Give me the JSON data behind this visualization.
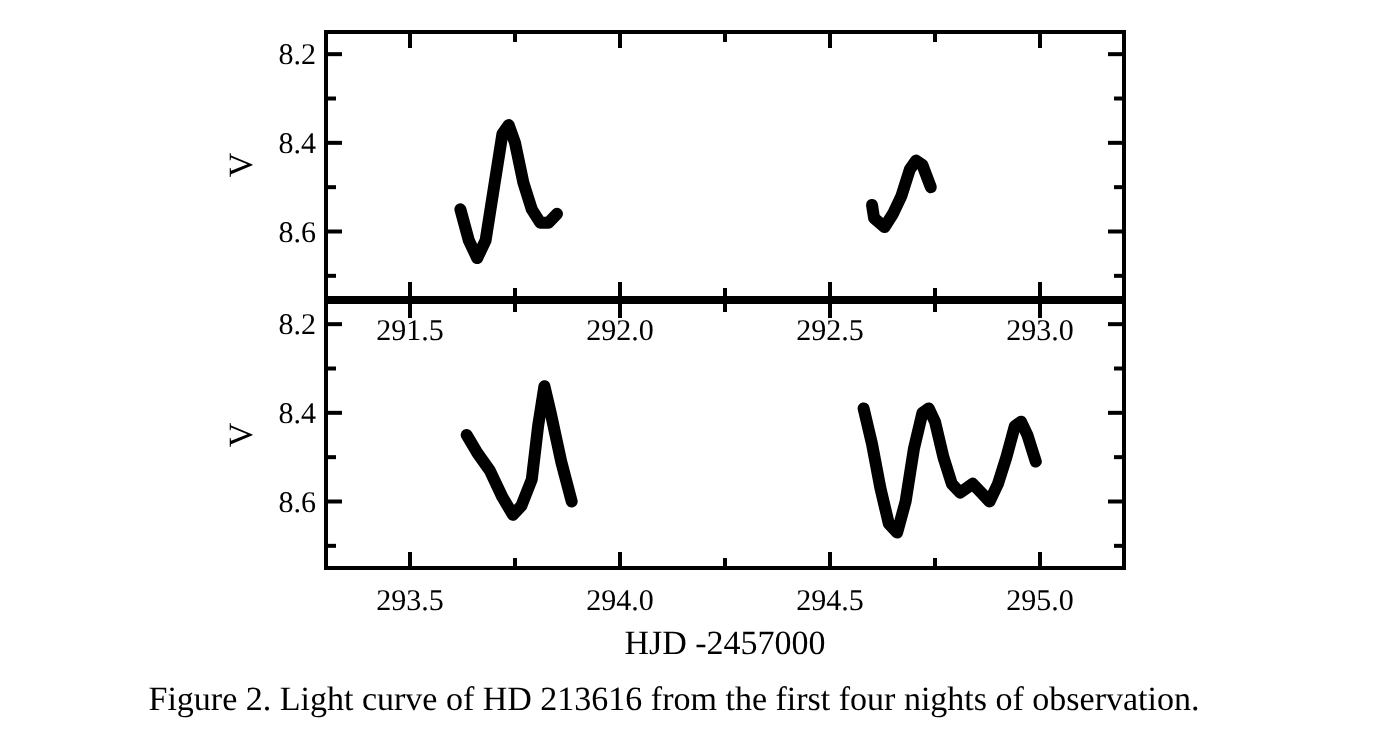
{
  "chart_data": [
    {
      "type": "line",
      "ylabel": "V",
      "xlim": [
        291.3,
        293.2
      ],
      "ylim": [
        8.75,
        8.15
      ],
      "xticks": [
        291.5,
        {
          "value": 291.75,
          "label": null
        },
        {
          "value": 292,
          "label": "292.0"
        },
        {
          "value": 292.25,
          "label": null
        },
        292.5,
        {
          "value": 292.75,
          "label": null
        },
        {
          "value": 293,
          "label": "293.0"
        }
      ],
      "yticks": [
        8.2,
        {
          "value": 8.3,
          "label": null
        },
        8.4,
        {
          "value": 8.5,
          "label": null
        },
        8.6,
        {
          "value": 8.7,
          "label": null
        }
      ],
      "series": [
        {
          "color": "#000000",
          "x": [
            291.62,
            291.64,
            291.66,
            291.68,
            291.7,
            291.72,
            291.735,
            291.75,
            291.77,
            291.79,
            291.81,
            291.83,
            291.85
          ],
          "values": [
            8.55,
            8.62,
            8.66,
            8.62,
            8.5,
            8.38,
            8.36,
            8.4,
            8.49,
            8.55,
            8.58,
            8.58,
            8.56
          ]
        },
        {
          "color": "#000000",
          "x": [
            292.6,
            292.605,
            292.63,
            292.65,
            292.67,
            292.69,
            292.705,
            292.72,
            292.74
          ],
          "values": [
            8.54,
            8.57,
            8.59,
            8.56,
            8.52,
            8.46,
            8.44,
            8.45,
            8.5
          ]
        }
      ]
    },
    {
      "type": "line",
      "ylabel": "V",
      "xlabel": "HJD -2457000",
      "xlim": [
        293.3,
        295.2
      ],
      "ylim": [
        8.75,
        8.15
      ],
      "xticks": [
        293.5,
        {
          "value": 293.75,
          "label": null
        },
        {
          "value": 294,
          "label": "294.0"
        },
        {
          "value": 294.25,
          "label": null
        },
        294.5,
        {
          "value": 294.75,
          "label": null
        },
        {
          "value": 295,
          "label": "295.0"
        }
      ],
      "yticks": [
        8.2,
        {
          "value": 8.3,
          "label": null
        },
        8.4,
        {
          "value": 8.5,
          "label": null
        },
        8.6,
        {
          "value": 8.7,
          "label": null
        }
      ],
      "annotations": [
        "Figure 2. Light curve of HD 213616 from the first four nights of observation."
      ],
      "series": [
        {
          "color": "#000000",
          "x": [
            293.635,
            293.66,
            293.69,
            293.72,
            293.745,
            293.765,
            293.79,
            293.805,
            293.82,
            293.835,
            293.86,
            293.885
          ],
          "values": [
            8.45,
            8.49,
            8.53,
            8.59,
            8.63,
            8.61,
            8.55,
            8.43,
            8.34,
            8.4,
            8.51,
            8.6
          ]
        },
        {
          "color": "#000000",
          "x": [
            294.58,
            294.6,
            294.62,
            294.64,
            294.66,
            294.68,
            294.7,
            294.72,
            294.735,
            294.75,
            294.77,
            294.79,
            294.81,
            294.84,
            294.86,
            294.88,
            294.9,
            294.92,
            294.94,
            294.955,
            294.97,
            294.99
          ],
          "values": [
            8.39,
            8.47,
            8.57,
            8.65,
            8.67,
            8.6,
            8.48,
            8.4,
            8.39,
            8.42,
            8.5,
            8.56,
            8.58,
            8.56,
            8.58,
            8.6,
            8.56,
            8.5,
            8.43,
            8.42,
            8.45,
            8.51
          ]
        }
      ]
    }
  ]
}
